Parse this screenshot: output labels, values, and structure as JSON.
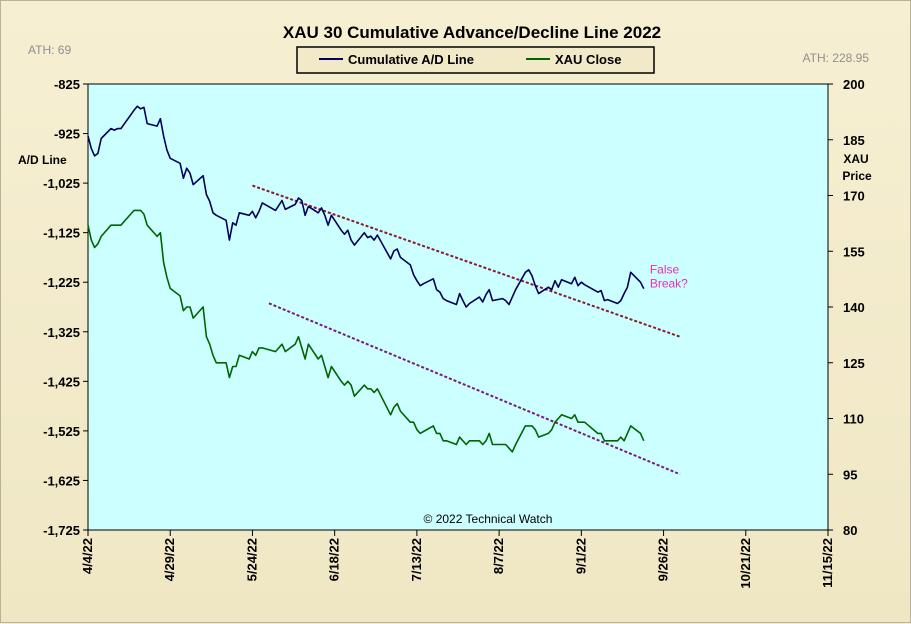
{
  "chart_data": {
    "type": "line",
    "title": "XAU 30 Cumulative Advance/Decline Line 2022",
    "left_axis": {
      "label_lines": [
        "A/D Line"
      ],
      "ylim": [
        -1725,
        -825
      ],
      "ticks": [
        "-825",
        "-925",
        "-1,025",
        "-1,125",
        "-1,225",
        "-1,325",
        "-1,425",
        "-1,525",
        "-1,625",
        "-1,725"
      ],
      "tick_values": [
        -825,
        -925,
        -1025,
        -1125,
        -1225,
        -1325,
        -1425,
        -1525,
        -1625,
        -1725
      ]
    },
    "right_axis": {
      "label_lines": [
        "XAU",
        "Price"
      ],
      "ylim": [
        80,
        200
      ],
      "ticks": [
        "200",
        "185",
        "170",
        "155",
        "140",
        "125",
        "110",
        "95",
        "80"
      ],
      "tick_values": [
        200,
        185,
        170,
        155,
        140,
        125,
        110,
        95,
        80
      ]
    },
    "x_axis": {
      "tick_labels": [
        "4/4/22",
        "4/29/22",
        "5/24/22",
        "6/18/22",
        "7/13/22",
        "8/7/22",
        "9/1/22",
        "9/26/22",
        "10/21/22",
        "11/15/22"
      ],
      "range": [
        "2022-04-04",
        "2022-11-15"
      ]
    },
    "ath_left": "ATH: 69",
    "ath_right": "ATH: 228.95",
    "legend": [
      "Cumulative A/D Line",
      "XAU Close"
    ],
    "copyright": "© 2022 Technical Watch",
    "annotation": [
      "False",
      "Break?"
    ],
    "series": [
      {
        "name": "Cumulative A/D Line",
        "axis": "left",
        "color": "#00005a",
        "points": [
          [
            "2022-04-04",
            -930
          ],
          [
            "2022-04-05",
            -955
          ],
          [
            "2022-04-06",
            -970
          ],
          [
            "2022-04-07",
            -965
          ],
          [
            "2022-04-08",
            -935
          ],
          [
            "2022-04-11",
            -915
          ],
          [
            "2022-04-12",
            -918
          ],
          [
            "2022-04-13",
            -915
          ],
          [
            "2022-04-14",
            -915
          ],
          [
            "2022-04-18",
            -878
          ],
          [
            "2022-04-19",
            -870
          ],
          [
            "2022-04-20",
            -875
          ],
          [
            "2022-04-21",
            -872
          ],
          [
            "2022-04-22",
            -905
          ],
          [
            "2022-04-25",
            -910
          ],
          [
            "2022-04-26",
            -895
          ],
          [
            "2022-04-27",
            -930
          ],
          [
            "2022-04-28",
            -958
          ],
          [
            "2022-04-29",
            -975
          ],
          [
            "2022-05-02",
            -985
          ],
          [
            "2022-05-03",
            -1015
          ],
          [
            "2022-05-04",
            -995
          ],
          [
            "2022-05-05",
            -1005
          ],
          [
            "2022-05-06",
            -1028
          ],
          [
            "2022-05-09",
            -1010
          ],
          [
            "2022-05-10",
            -1048
          ],
          [
            "2022-05-11",
            -1062
          ],
          [
            "2022-05-12",
            -1085
          ],
          [
            "2022-05-13",
            -1090
          ],
          [
            "2022-05-16",
            -1100
          ],
          [
            "2022-05-17",
            -1140
          ],
          [
            "2022-05-18",
            -1105
          ],
          [
            "2022-05-19",
            -1110
          ],
          [
            "2022-05-20",
            -1085
          ],
          [
            "2022-05-23",
            -1090
          ],
          [
            "2022-05-24",
            -1082
          ],
          [
            "2022-05-25",
            -1095
          ],
          [
            "2022-05-26",
            -1082
          ],
          [
            "2022-05-27",
            -1065
          ],
          [
            "2022-05-31",
            -1080
          ],
          [
            "2022-06-01",
            -1070
          ],
          [
            "2022-06-02",
            -1060
          ],
          [
            "2022-06-03",
            -1078
          ],
          [
            "2022-06-06",
            -1068
          ],
          [
            "2022-06-07",
            -1055
          ],
          [
            "2022-06-08",
            -1060
          ],
          [
            "2022-06-09",
            -1090
          ],
          [
            "2022-06-10",
            -1072
          ],
          [
            "2022-06-13",
            -1085
          ],
          [
            "2022-06-14",
            -1075
          ],
          [
            "2022-06-15",
            -1090
          ],
          [
            "2022-06-16",
            -1110
          ],
          [
            "2022-06-17",
            -1090
          ],
          [
            "2022-06-20",
            -1120
          ],
          [
            "2022-06-21",
            -1128
          ],
          [
            "2022-06-22",
            -1120
          ],
          [
            "2022-06-23",
            -1140
          ],
          [
            "2022-06-24",
            -1150
          ],
          [
            "2022-06-27",
            -1125
          ],
          [
            "2022-06-28",
            -1135
          ],
          [
            "2022-06-29",
            -1132
          ],
          [
            "2022-06-30",
            -1140
          ],
          [
            "2022-07-01",
            -1130
          ],
          [
            "2022-07-05",
            -1178
          ],
          [
            "2022-07-06",
            -1162
          ],
          [
            "2022-07-07",
            -1158
          ],
          [
            "2022-07-08",
            -1175
          ],
          [
            "2022-07-11",
            -1190
          ],
          [
            "2022-07-12",
            -1210
          ],
          [
            "2022-07-13",
            -1222
          ],
          [
            "2022-07-14",
            -1232
          ],
          [
            "2022-07-15",
            -1228
          ],
          [
            "2022-07-18",
            -1218
          ],
          [
            "2022-07-19",
            -1240
          ],
          [
            "2022-07-20",
            -1245
          ],
          [
            "2022-07-21",
            -1258
          ],
          [
            "2022-07-22",
            -1262
          ],
          [
            "2022-07-25",
            -1270
          ],
          [
            "2022-07-26",
            -1248
          ],
          [
            "2022-07-27",
            -1262
          ],
          [
            "2022-07-28",
            -1275
          ],
          [
            "2022-07-29",
            -1268
          ],
          [
            "2022-08-01",
            -1255
          ],
          [
            "2022-08-02",
            -1265
          ],
          [
            "2022-08-03",
            -1250
          ],
          [
            "2022-08-04",
            -1240
          ],
          [
            "2022-08-05",
            -1262
          ],
          [
            "2022-08-08",
            -1258
          ],
          [
            "2022-08-09",
            -1262
          ],
          [
            "2022-08-10",
            -1270
          ],
          [
            "2022-08-11",
            -1255
          ],
          [
            "2022-08-12",
            -1240
          ],
          [
            "2022-08-15",
            -1205
          ],
          [
            "2022-08-16",
            -1200
          ],
          [
            "2022-08-17",
            -1212
          ],
          [
            "2022-08-18",
            -1232
          ],
          [
            "2022-08-19",
            -1248
          ],
          [
            "2022-08-22",
            -1235
          ],
          [
            "2022-08-23",
            -1240
          ],
          [
            "2022-08-24",
            -1222
          ],
          [
            "2022-08-25",
            -1235
          ],
          [
            "2022-08-26",
            -1220
          ],
          [
            "2022-08-29",
            -1228
          ],
          [
            "2022-08-30",
            -1215
          ],
          [
            "2022-08-31",
            -1232
          ],
          [
            "2022-09-01",
            -1225
          ],
          [
            "2022-09-02",
            -1230
          ],
          [
            "2022-09-06",
            -1245
          ],
          [
            "2022-09-07",
            -1242
          ],
          [
            "2022-09-08",
            -1262
          ],
          [
            "2022-09-09",
            -1260
          ],
          [
            "2022-09-12",
            -1268
          ],
          [
            "2022-09-13",
            -1262
          ],
          [
            "2022-09-14",
            -1248
          ],
          [
            "2022-09-15",
            -1235
          ],
          [
            "2022-09-16",
            -1205
          ],
          [
            "2022-09-19",
            -1225
          ],
          [
            "2022-09-20",
            -1238
          ]
        ]
      },
      {
        "name": "XAU Close",
        "axis": "right",
        "color": "#006400",
        "points": [
          [
            "2022-04-04",
            162
          ],
          [
            "2022-04-05",
            158
          ],
          [
            "2022-04-06",
            156
          ],
          [
            "2022-04-07",
            157
          ],
          [
            "2022-04-08",
            159
          ],
          [
            "2022-04-11",
            162
          ],
          [
            "2022-04-12",
            162
          ],
          [
            "2022-04-13",
            162
          ],
          [
            "2022-04-14",
            162
          ],
          [
            "2022-04-18",
            166
          ],
          [
            "2022-04-19",
            166
          ],
          [
            "2022-04-20",
            166
          ],
          [
            "2022-04-21",
            165
          ],
          [
            "2022-04-22",
            162
          ],
          [
            "2022-04-25",
            159
          ],
          [
            "2022-04-26",
            160
          ],
          [
            "2022-04-27",
            152
          ],
          [
            "2022-04-28",
            148
          ],
          [
            "2022-04-29",
            145
          ],
          [
            "2022-05-02",
            143
          ],
          [
            "2022-05-03",
            139
          ],
          [
            "2022-05-04",
            140
          ],
          [
            "2022-05-05",
            140
          ],
          [
            "2022-05-06",
            137
          ],
          [
            "2022-05-09",
            140
          ],
          [
            "2022-05-10",
            132
          ],
          [
            "2022-05-11",
            130
          ],
          [
            "2022-05-12",
            127
          ],
          [
            "2022-05-13",
            125
          ],
          [
            "2022-05-16",
            125
          ],
          [
            "2022-05-17",
            121
          ],
          [
            "2022-05-18",
            124
          ],
          [
            "2022-05-19",
            124
          ],
          [
            "2022-05-20",
            127
          ],
          [
            "2022-05-23",
            126
          ],
          [
            "2022-05-24",
            128
          ],
          [
            "2022-05-25",
            127
          ],
          [
            "2022-05-26",
            129
          ],
          [
            "2022-05-27",
            129
          ],
          [
            "2022-05-31",
            128
          ],
          [
            "2022-06-01",
            129
          ],
          [
            "2022-06-02",
            130
          ],
          [
            "2022-06-03",
            128
          ],
          [
            "2022-06-06",
            130
          ],
          [
            "2022-06-07",
            132
          ],
          [
            "2022-06-08",
            129
          ],
          [
            "2022-06-09",
            126
          ],
          [
            "2022-06-10",
            130
          ],
          [
            "2022-06-13",
            126
          ],
          [
            "2022-06-14",
            127
          ],
          [
            "2022-06-15",
            124
          ],
          [
            "2022-06-16",
            121
          ],
          [
            "2022-06-17",
            124
          ],
          [
            "2022-06-20",
            120
          ],
          [
            "2022-06-21",
            119
          ],
          [
            "2022-06-22",
            120
          ],
          [
            "2022-06-23",
            119
          ],
          [
            "2022-06-24",
            116
          ],
          [
            "2022-06-27",
            119
          ],
          [
            "2022-06-28",
            118
          ],
          [
            "2022-06-29",
            118
          ],
          [
            "2022-06-30",
            117
          ],
          [
            "2022-07-01",
            118
          ],
          [
            "2022-07-05",
            111
          ],
          [
            "2022-07-06",
            113
          ],
          [
            "2022-07-07",
            114
          ],
          [
            "2022-07-08",
            112
          ],
          [
            "2022-07-11",
            109
          ],
          [
            "2022-07-12",
            109
          ],
          [
            "2022-07-13",
            107
          ],
          [
            "2022-07-14",
            106
          ],
          [
            "2022-07-15",
            106.5
          ],
          [
            "2022-07-18",
            108
          ],
          [
            "2022-07-19",
            106
          ],
          [
            "2022-07-20",
            106
          ],
          [
            "2022-07-21",
            104
          ],
          [
            "2022-07-22",
            104
          ],
          [
            "2022-07-25",
            103
          ],
          [
            "2022-07-26",
            105
          ],
          [
            "2022-07-27",
            104
          ],
          [
            "2022-07-28",
            103
          ],
          [
            "2022-07-29",
            104
          ],
          [
            "2022-08-01",
            104
          ],
          [
            "2022-08-02",
            103
          ],
          [
            "2022-08-03",
            104
          ],
          [
            "2022-08-04",
            106
          ],
          [
            "2022-08-05",
            103
          ],
          [
            "2022-08-08",
            103
          ],
          [
            "2022-08-09",
            103
          ],
          [
            "2022-08-10",
            102
          ],
          [
            "2022-08-11",
            101
          ],
          [
            "2022-08-12",
            103
          ],
          [
            "2022-08-15",
            108
          ],
          [
            "2022-08-16",
            108
          ],
          [
            "2022-08-17",
            108
          ],
          [
            "2022-08-18",
            107
          ],
          [
            "2022-08-19",
            105
          ],
          [
            "2022-08-22",
            106
          ],
          [
            "2022-08-23",
            107
          ],
          [
            "2022-08-24",
            109
          ],
          [
            "2022-08-25",
            110
          ],
          [
            "2022-08-26",
            111
          ],
          [
            "2022-08-29",
            110
          ],
          [
            "2022-08-30",
            111
          ],
          [
            "2022-08-31",
            109
          ],
          [
            "2022-09-01",
            109
          ],
          [
            "2022-09-02",
            109
          ],
          [
            "2022-09-06",
            106
          ],
          [
            "2022-09-07",
            106
          ],
          [
            "2022-09-08",
            104
          ],
          [
            "2022-09-09",
            104
          ],
          [
            "2022-09-12",
            104
          ],
          [
            "2022-09-13",
            105
          ],
          [
            "2022-09-14",
            104
          ],
          [
            "2022-09-15",
            106
          ],
          [
            "2022-09-16",
            108
          ],
          [
            "2022-09-19",
            106
          ],
          [
            "2022-09-20",
            104
          ]
        ]
      }
    ],
    "trendlines": [
      {
        "axis": "left",
        "color": "#8b1a2b",
        "from": [
          "2022-05-24",
          -1030
        ],
        "to": [
          "2022-10-01",
          -1335
        ]
      },
      {
        "axis": "right",
        "color": "#7b1a7a",
        "from": [
          "2022-05-29",
          141
        ],
        "to": [
          "2022-10-01",
          95
        ]
      }
    ],
    "annotation_anchor": [
      "2022-09-20",
      -1220
    ]
  },
  "plot_background": "#ccffff"
}
